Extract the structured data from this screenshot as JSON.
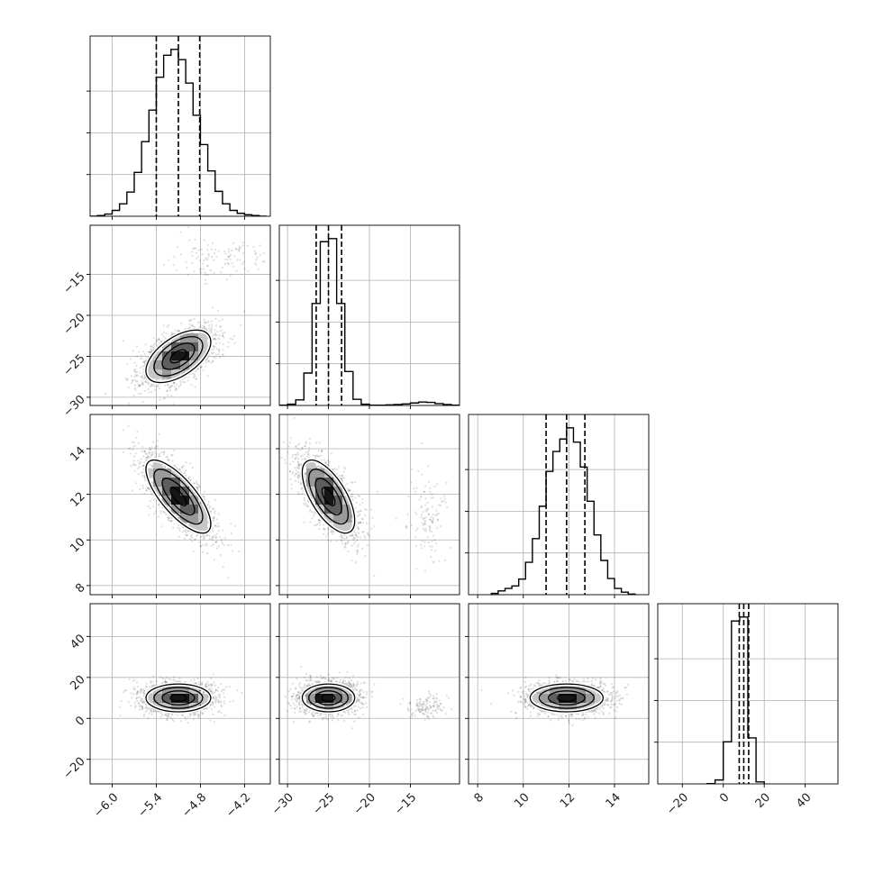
{
  "colors": {
    "frame": "#000000",
    "grid": "#b0b0b0",
    "histogram_line": "#000000",
    "quantile_line": "#000000",
    "sample_points": "#000000",
    "density_levels": [
      "#e6e6e6",
      "#c6c6c6",
      "#9a9a9a",
      "#5e5e5e",
      "#161616"
    ],
    "contour_inner_halo": "#ffffff"
  },
  "chart_data": {
    "type": "corner",
    "parameters": [
      {
        "range": [
          -6.3,
          -3.85
        ],
        "ticks": [
          -6.0,
          -5.4,
          -4.8,
          -4.2
        ],
        "tick_labels": [
          "−6.0",
          "−5.4",
          "−4.8",
          "−4.2"
        ],
        "median": -5.1,
        "quantiles": [
          -5.4,
          -5.1,
          -4.81
        ],
        "marginal": {
          "bin_edges": [
            -6.3,
            -6.2,
            -6.1,
            -6.0,
            -5.9,
            -5.8,
            -5.7,
            -5.6,
            -5.5,
            -5.4,
            -5.3,
            -5.2,
            -5.1,
            -5.0,
            -4.9,
            -4.8,
            -4.7,
            -4.6,
            -4.5,
            -4.4,
            -4.3,
            -4.2,
            -4.1,
            -4.0,
            -3.9
          ],
          "counts": [
            0,
            1,
            3,
            8,
            17,
            33,
            60,
            102,
            145,
            190,
            220,
            228,
            214,
            182,
            138,
            98,
            62,
            34,
            17,
            8,
            4,
            2,
            1,
            0
          ]
        }
      },
      {
        "range": [
          -31,
          -9
        ],
        "ticks": [
          -30,
          -25,
          -20,
          -15
        ],
        "tick_labels": [
          "−30",
          "−25",
          "−20",
          "−15"
        ],
        "median": -25.0,
        "quantiles": [
          -26.5,
          -25.0,
          -23.4
        ],
        "marginal": {
          "bin_edges": [
            -31,
            -30,
            -29,
            -28,
            -27,
            -26,
            -25,
            -24,
            -23,
            -22,
            -21,
            -20,
            -19,
            -18,
            -17,
            -16,
            -15,
            -14,
            -13,
            -12,
            -11,
            -10,
            -9
          ],
          "counts": [
            1,
            4,
            18,
            105,
            330,
            530,
            540,
            330,
            110,
            20,
            4,
            1,
            1,
            2,
            3,
            5,
            8,
            11,
            10,
            6,
            3,
            1
          ]
        }
      },
      {
        "range": [
          7.6,
          15.5
        ],
        "ticks": [
          8,
          10,
          12,
          14
        ],
        "tick_labels": [
          "8",
          "10",
          "12",
          "14"
        ],
        "median": 11.9,
        "quantiles": [
          11.0,
          11.9,
          12.7
        ],
        "marginal": {
          "bin_edges": [
            8.6,
            8.9,
            9.2,
            9.5,
            9.8,
            10.1,
            10.4,
            10.7,
            11.0,
            11.3,
            11.6,
            11.9,
            12.2,
            12.5,
            12.8,
            13.1,
            13.4,
            13.7,
            14.0,
            14.3,
            14.6,
            14.9
          ],
          "counts": [
            2,
            6,
            10,
            14,
            25,
            52,
            90,
            142,
            198,
            230,
            250,
            268,
            245,
            205,
            150,
            96,
            55,
            26,
            10,
            4,
            1
          ]
        }
      },
      {
        "range": [
          -32,
          56
        ],
        "ticks": [
          -20,
          0,
          20,
          40
        ],
        "tick_labels": [
          "−20",
          "0",
          "20",
          "40"
        ],
        "median": 10.0,
        "quantiles": [
          7.8,
          10.0,
          12.4
        ],
        "marginal": {
          "bin_edges": [
            -8,
            -4,
            0,
            4,
            8,
            12,
            16,
            20
          ],
          "counts": [
            2,
            30,
            320,
            1240,
            1270,
            350,
            15
          ]
        }
      }
    ],
    "pairs": [
      {
        "row": 1,
        "col": 0,
        "mean": [
          -5.1,
          -25.0
        ],
        "sd": [
          0.22,
          1.6
        ],
        "corr": 0.55,
        "outlier_cluster": {
          "mean": [
            -4.55,
            -13.0
          ],
          "sd": [
            0.35,
            1.2
          ],
          "fraction": 0.03
        }
      },
      {
        "row": 2,
        "col": 0,
        "mean": [
          -5.1,
          11.9
        ],
        "sd": [
          0.22,
          0.8
        ],
        "corr": -0.75
      },
      {
        "row": 2,
        "col": 1,
        "mean": [
          -25.0,
          11.9
        ],
        "sd": [
          1.6,
          0.8
        ],
        "corr": -0.65,
        "outlier_cluster": {
          "mean": [
            -13.0,
            11.0
          ],
          "sd": [
            1.2,
            1.0
          ],
          "fraction": 0.03
        }
      },
      {
        "row": 3,
        "col": 0,
        "mean": [
          -5.1,
          10.0
        ],
        "sd": [
          0.22,
          3.4
        ],
        "corr": 0.0
      },
      {
        "row": 3,
        "col": 1,
        "mean": [
          -25.0,
          10.0
        ],
        "sd": [
          1.6,
          3.4
        ],
        "corr": 0.0,
        "outlier_cluster": {
          "mean": [
            -13.0,
            6.0
          ],
          "sd": [
            1.2,
            3.0
          ],
          "fraction": 0.03
        }
      },
      {
        "row": 3,
        "col": 2,
        "mean": [
          11.9,
          10.0
        ],
        "sd": [
          0.8,
          3.4
        ],
        "corr": 0.0
      }
    ],
    "contour_levels_sigma": [
      0.5,
      1.0,
      1.5,
      2.0
    ],
    "grid": true,
    "xlabel": "",
    "ylabel": "",
    "title": ""
  }
}
